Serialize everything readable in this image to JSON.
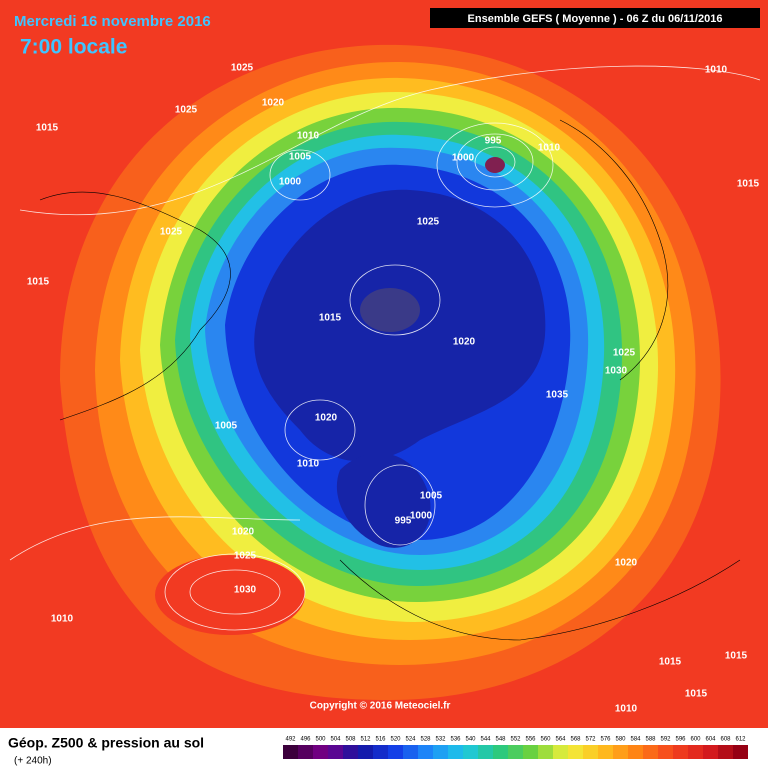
{
  "header": {
    "date": "Mercredi 16 novembre 2016",
    "time": "7:00 locale",
    "run": "Ensemble GEFS  ( Moyenne )  -  06 Z du 06/11/2016"
  },
  "map": {
    "contour_labels": [
      "1025",
      "1020",
      "1025",
      "1015",
      "1010",
      "1005",
      "1000",
      "995",
      "1000",
      "1010",
      "1025",
      "1025",
      "1015",
      "1015",
      "1020",
      "1025",
      "1030",
      "1035",
      "1005",
      "1020",
      "1010",
      "1005",
      "1000",
      "995",
      "1020",
      "1025",
      "1030",
      "1010",
      "1020",
      "1010",
      "1015",
      "1015",
      "1015",
      "1015",
      "1010"
    ],
    "copyright": "Copyright © 2016 Meteociel.fr"
  },
  "legend": {
    "title": "Géop. Z500 & pression au sol",
    "lead": "(+ 240h)",
    "scale": [
      492,
      496,
      500,
      504,
      508,
      512,
      516,
      520,
      524,
      528,
      532,
      536,
      540,
      544,
      548,
      552,
      556,
      560,
      564,
      568,
      572,
      576,
      580,
      584,
      588,
      592,
      596,
      600,
      604,
      608,
      612
    ]
  }
}
